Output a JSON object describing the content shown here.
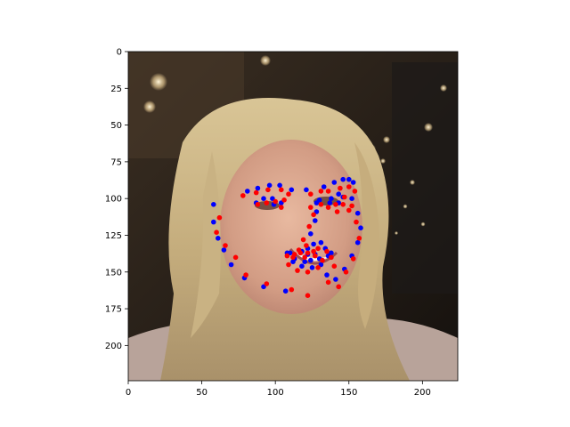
{
  "chart_data": {
    "type": "scatter",
    "title": "",
    "xlabel": "",
    "ylabel": "",
    "xlim": [
      0,
      224
    ],
    "ylim": [
      224,
      0
    ],
    "grid": false,
    "y_axis_inverted": true,
    "background": "photograph of a smiling blonde woman's face (dark studio background with lights)",
    "x_ticks": [
      0,
      50,
      100,
      150,
      200
    ],
    "y_ticks": [
      0,
      25,
      50,
      75,
      100,
      125,
      150,
      175,
      200
    ],
    "series": [
      {
        "color": "#0000ff",
        "points": [
          [
            58,
            104
          ],
          [
            58,
            116
          ],
          [
            61,
            127
          ],
          [
            65,
            135
          ],
          [
            70,
            145
          ],
          [
            79,
            154
          ],
          [
            92,
            160
          ],
          [
            107,
            163
          ],
          [
            81,
            95
          ],
          [
            88,
            93
          ],
          [
            96,
            91
          ],
          [
            103,
            91
          ],
          [
            111,
            94
          ],
          [
            121,
            94
          ],
          [
            133,
            92
          ],
          [
            140,
            89
          ],
          [
            146,
            87
          ],
          [
            150,
            87
          ],
          [
            153,
            89
          ],
          [
            128,
            103
          ],
          [
            128,
            109
          ],
          [
            127,
            115
          ],
          [
            124,
            124
          ],
          [
            122,
            134
          ],
          [
            126,
            131
          ],
          [
            131,
            130
          ],
          [
            134,
            134
          ],
          [
            87,
            103
          ],
          [
            92,
            100
          ],
          [
            98,
            100
          ],
          [
            104,
            103
          ],
          [
            99,
            104
          ],
          [
            130,
            101
          ],
          [
            138,
            100
          ],
          [
            143,
            97
          ],
          [
            146,
            99
          ],
          [
            143,
            103
          ],
          [
            137,
            103
          ],
          [
            108,
            137
          ],
          [
            113,
            141
          ],
          [
            120,
            143
          ],
          [
            124,
            142
          ],
          [
            130,
            141
          ],
          [
            136,
            139
          ],
          [
            138,
            137
          ],
          [
            131,
            145
          ],
          [
            125,
            147
          ],
          [
            118,
            146
          ],
          [
            112,
            143
          ],
          [
            127,
            138
          ],
          [
            122,
            138
          ],
          [
            118,
            136
          ],
          [
            110,
            137
          ],
          [
            135,
            152
          ],
          [
            141,
            155
          ],
          [
            147,
            148
          ],
          [
            152,
            139
          ],
          [
            156,
            130
          ],
          [
            158,
            120
          ],
          [
            156,
            110
          ],
          [
            152,
            100
          ]
        ]
      },
      {
        "color": "#ff0000",
        "points": [
          [
            62,
            113
          ],
          [
            60,
            123
          ],
          [
            66,
            132
          ],
          [
            73,
            140
          ],
          [
            80,
            152
          ],
          [
            94,
            158
          ],
          [
            111,
            162
          ],
          [
            122,
            166
          ],
          [
            78,
            98
          ],
          [
            87,
            96
          ],
          [
            95,
            94
          ],
          [
            104,
            94
          ],
          [
            109,
            97
          ],
          [
            124,
            97
          ],
          [
            131,
            95
          ],
          [
            136,
            95
          ],
          [
            144,
            93
          ],
          [
            150,
            92
          ],
          [
            154,
            95
          ],
          [
            124,
            106
          ],
          [
            126,
            111
          ],
          [
            123,
            119
          ],
          [
            119,
            128
          ],
          [
            117,
            137
          ],
          [
            121,
            132
          ],
          [
            129,
            134
          ],
          [
            135,
            136
          ],
          [
            88,
            104
          ],
          [
            94,
            103
          ],
          [
            100,
            102
          ],
          [
            106,
            101
          ],
          [
            104,
            106
          ],
          [
            131,
            104
          ],
          [
            136,
            106
          ],
          [
            141,
            104
          ],
          [
            146,
            104
          ],
          [
            150,
            108
          ],
          [
            142,
            109
          ],
          [
            112,
            140
          ],
          [
            116,
            135
          ],
          [
            122,
            137
          ],
          [
            127,
            139
          ],
          [
            132,
            142
          ],
          [
            138,
            140
          ],
          [
            140,
            146
          ],
          [
            129,
            147
          ],
          [
            122,
            150
          ],
          [
            115,
            149
          ],
          [
            109,
            145
          ],
          [
            126,
            136
          ],
          [
            120,
            140
          ],
          [
            113,
            138
          ],
          [
            108,
            139
          ],
          [
            136,
            157
          ],
          [
            143,
            160
          ],
          [
            148,
            150
          ],
          [
            153,
            141
          ],
          [
            157,
            127
          ],
          [
            155,
            116
          ],
          [
            152,
            105
          ],
          [
            147,
            99
          ]
        ]
      }
    ]
  }
}
